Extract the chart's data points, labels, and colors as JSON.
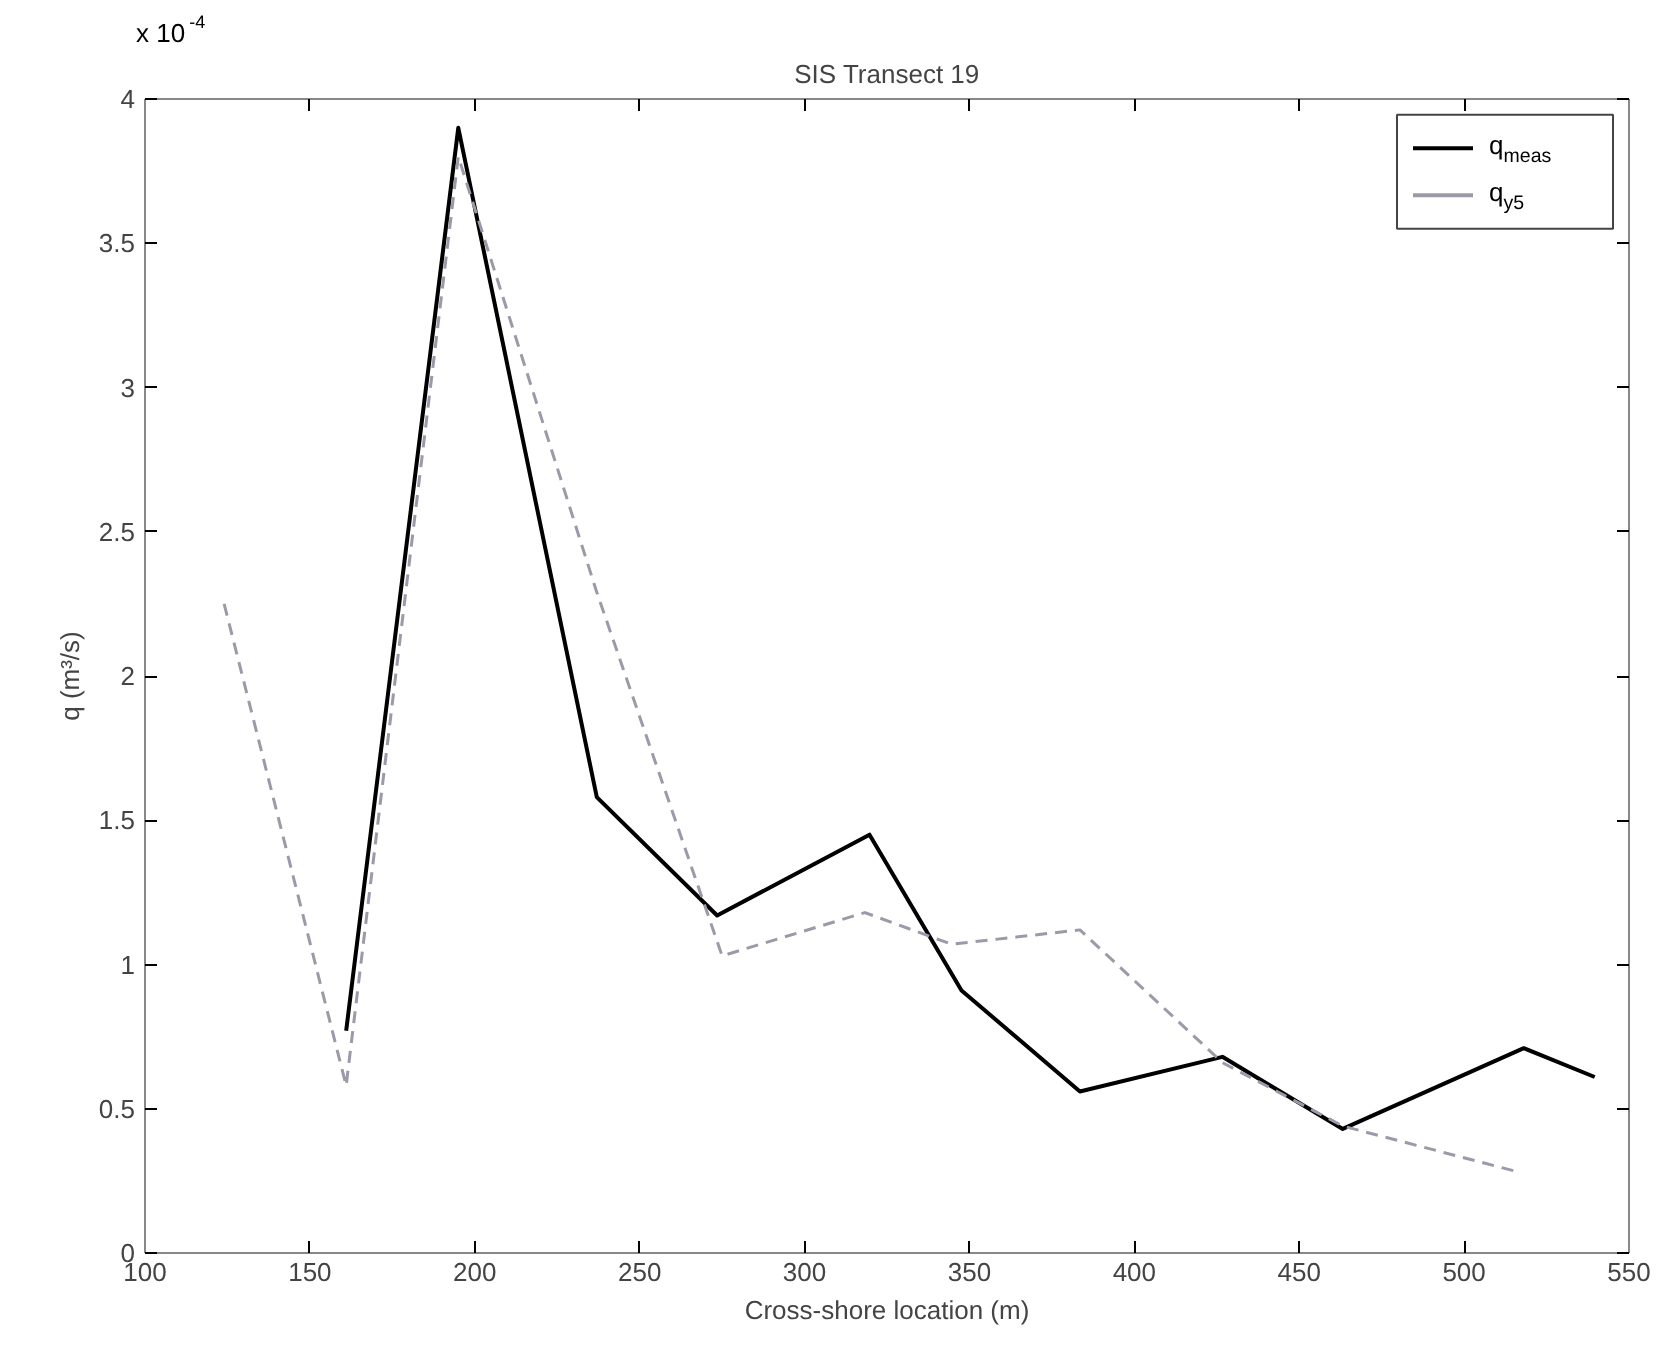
{
  "chart_data": {
    "type": "line",
    "title": "SIS Transect 19",
    "xlabel": "Cross-shore location (m)",
    "ylabel": "q (m³/s)",
    "xlim": [
      100,
      550
    ],
    "xticks": [
      100,
      150,
      200,
      250,
      300,
      350,
      400,
      450,
      500,
      550
    ],
    "ylim": [
      0,
      4
    ],
    "yticks": [
      0,
      0.5,
      1,
      1.5,
      2,
      2.5,
      3,
      3.5,
      4
    ],
    "annotations": [
      "x 10$^{-4}$"
    ],
    "legend": "top right",
    "grid": false,
    "series": [
      {
        "name": "q$_{meas}$",
        "color": "#000000",
        "line_style": "solid",
        "x": [
          161,
          195,
          237,
          273.5,
          319.7,
          347.6,
          383.5,
          426.7,
          463.2,
          518.1,
          539.6
        ],
        "values": [
          0.77,
          3.9,
          1.58,
          1.17,
          1.45,
          0.91,
          0.56,
          0.68,
          0.43,
          0.71,
          0.61
        ]
      },
      {
        "name": "q$_{y5}$",
        "color": "#9a9aa8",
        "line_style": "dashed",
        "x": [
          124,
          161,
          195,
          237,
          275,
          318.3,
          344.6,
          383.5,
          426.7,
          463.2,
          516.7
        ],
        "values": [
          2.25,
          0.58,
          3.8,
          2.29,
          1.03,
          1.18,
          1.07,
          1.12,
          0.66,
          0.44,
          0.28
        ]
      }
    ]
  }
}
